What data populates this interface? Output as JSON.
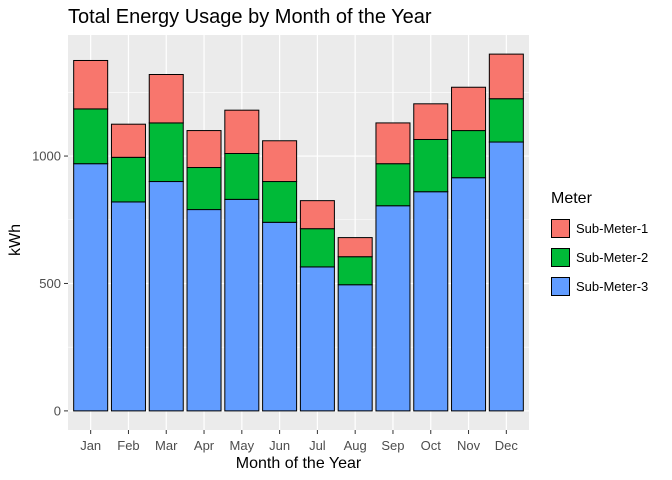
{
  "chart_data": {
    "type": "bar",
    "stacked": true,
    "title": "Total Energy Usage by Month of the Year",
    "xlabel": "Month of the Year",
    "ylabel": "kWh",
    "ylim": [
      -75,
      1475
    ],
    "yticks": [
      0,
      500,
      1000
    ],
    "grid": true,
    "legend_position": "right",
    "legend_title": "Meter",
    "categories": [
      "Jan",
      "Feb",
      "Mar",
      "Apr",
      "May",
      "Jun",
      "Jul",
      "Aug",
      "Sep",
      "Oct",
      "Nov",
      "Dec"
    ],
    "series": [
      {
        "name": "Sub-Meter-3",
        "color": "#619CFF",
        "values": [
          970,
          820,
          900,
          790,
          830,
          740,
          565,
          495,
          805,
          860,
          915,
          1055
        ]
      },
      {
        "name": "Sub-Meter-2",
        "color": "#00BA38",
        "values": [
          215,
          175,
          230,
          165,
          180,
          160,
          150,
          110,
          165,
          205,
          185,
          170
        ]
      },
      {
        "name": "Sub-Meter-1",
        "color": "#F8766D",
        "values": [
          190,
          130,
          190,
          145,
          170,
          160,
          110,
          75,
          160,
          140,
          170,
          175
        ]
      }
    ]
  }
}
